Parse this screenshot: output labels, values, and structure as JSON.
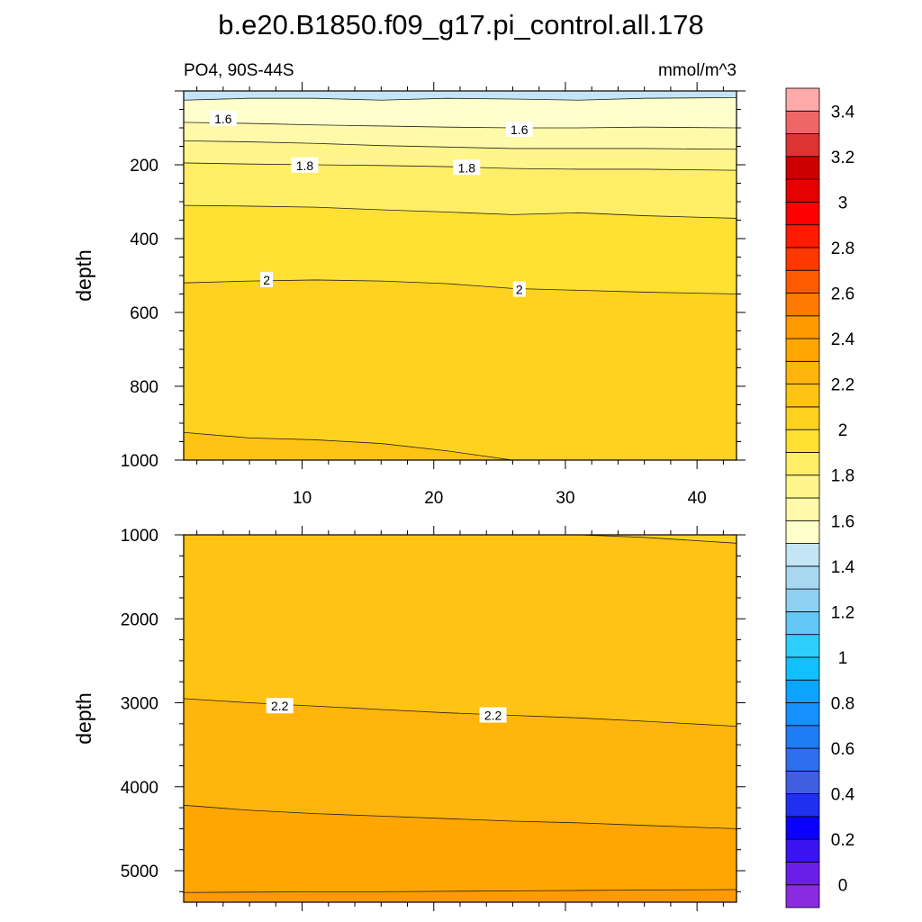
{
  "title": "b.e20.B1850.f09_g17.pi_control.all.178",
  "subtitle_left": "PO4, 90S-44S",
  "subtitle_right": "mmol/m^3",
  "colors": {
    "bins": [
      "#8a2be2",
      "#6a1fe8",
      "#3a14f0",
      "#0a00ff",
      "#1f30f0",
      "#3f5fe0",
      "#2e6ff0",
      "#1e7cf5",
      "#1690ff",
      "#0aa5ff",
      "#12c0ff",
      "#2dcfff",
      "#63c8f5",
      "#8fcff0",
      "#a7d8f0",
      "#c4e5f5",
      "#ffffcc",
      "#fffaaa",
      "#fff589",
      "#ffee66",
      "#ffe033",
      "#ffd21f",
      "#ffc313",
      "#ffb50b",
      "#ffa600",
      "#ff9a00",
      "#ff7a00",
      "#ff5a00",
      "#ff3800",
      "#ff1a00",
      "#ff0000",
      "#e60000",
      "#cc0000",
      "#dd3333",
      "#ee6666",
      "#ffaaaa"
    ]
  },
  "chart_data": [
    {
      "type": "contour",
      "panel": "top",
      "xlim": [
        1,
        43
      ],
      "ylim": [
        1000,
        0
      ],
      "xticks": [
        10,
        20,
        30,
        40
      ],
      "yticks": [
        200,
        400,
        600,
        800,
        1000
      ],
      "ylabel": "depth",
      "bands": [
        {
          "value": 1.5,
          "depths": [
            25,
            20,
            20,
            25,
            20,
            22,
            25,
            20,
            18
          ]
        },
        {
          "value": 1.6,
          "depths": [
            85,
            88,
            92,
            95,
            98,
            100,
            100,
            98,
            100
          ]
        },
        {
          "value": 1.7,
          "depths": [
            135,
            138,
            142,
            148,
            152,
            156,
            156,
            156,
            158
          ]
        },
        {
          "value": 1.8,
          "depths": [
            195,
            198,
            200,
            202,
            205,
            210,
            212,
            212,
            215
          ]
        },
        {
          "value": 1.9,
          "depths": [
            310,
            312,
            315,
            322,
            328,
            335,
            330,
            338,
            345
          ]
        },
        {
          "value": 2.0,
          "depths": [
            520,
            515,
            512,
            515,
            522,
            535,
            540,
            545,
            550
          ]
        },
        {
          "value": 2.1,
          "depths": [
            925,
            940,
            945,
            955,
            975,
            1000,
            1000,
            1000,
            1000
          ]
        }
      ],
      "band_x": [
        1,
        6,
        11,
        16,
        21,
        26,
        31,
        36,
        43
      ],
      "contour_labels": [
        {
          "text": "1.6",
          "x": 4.0,
          "y": 75
        },
        {
          "text": "1.6",
          "x": 26.5,
          "y": 105
        },
        {
          "text": "1.8",
          "x": 10.2,
          "y": 202
        },
        {
          "text": "1.8",
          "x": 22.5,
          "y": 208
        },
        {
          "text": "2",
          "x": 7.3,
          "y": 512
        },
        {
          "text": "2",
          "x": 26.5,
          "y": 538
        }
      ]
    },
    {
      "type": "contour",
      "panel": "bottom",
      "xlim": [
        1,
        43
      ],
      "ylim": [
        5375,
        1000
      ],
      "xticks": [
        10,
        20,
        30,
        40
      ],
      "yticks": [
        1000,
        2000,
        3000,
        4000,
        5000
      ],
      "ylabel": "depth",
      "bands": [
        {
          "value": 2.1,
          "depths": [
            1000,
            1000,
            1000,
            1000,
            1000,
            1000,
            1000,
            1030,
            1100
          ]
        },
        {
          "value": 2.2,
          "depths": [
            2950,
            3000,
            3040,
            3080,
            3120,
            3150,
            3180,
            3220,
            3280
          ]
        },
        {
          "value": 2.3,
          "depths": [
            4220,
            4280,
            4320,
            4350,
            4380,
            4410,
            4430,
            4460,
            4500
          ]
        },
        {
          "value": 2.4,
          "depths": [
            5260,
            5255,
            5250,
            5250,
            5245,
            5240,
            5235,
            5230,
            5225
          ]
        }
      ],
      "band_x": [
        1,
        6,
        11,
        16,
        21,
        26,
        31,
        36,
        43
      ],
      "contour_labels": [
        {
          "text": "2.2",
          "x": 8.3,
          "y": 3040
        },
        {
          "text": "2.2",
          "x": 24.5,
          "y": 3150
        }
      ]
    }
  ],
  "colorbar": {
    "levels": [
      0,
      0.1,
      0.2,
      0.3,
      0.4,
      0.5,
      0.6,
      0.7,
      0.8,
      0.9,
      1.0,
      1.1,
      1.2,
      1.3,
      1.4,
      1.5,
      1.6,
      1.7,
      1.8,
      1.9,
      2.0,
      2.1,
      2.2,
      2.3,
      2.4,
      2.5,
      2.6,
      2.7,
      2.8,
      2.9,
      3.0,
      3.1,
      3.2,
      3.3,
      3.4,
      3.5
    ],
    "tick_labels": [
      "0",
      "0.2",
      "0.4",
      "0.6",
      "0.8",
      "1",
      "1.2",
      "1.4",
      "1.6",
      "1.8",
      "2",
      "2.2",
      "2.4",
      "2.6",
      "2.8",
      "3",
      "3.2",
      "3.4"
    ]
  }
}
